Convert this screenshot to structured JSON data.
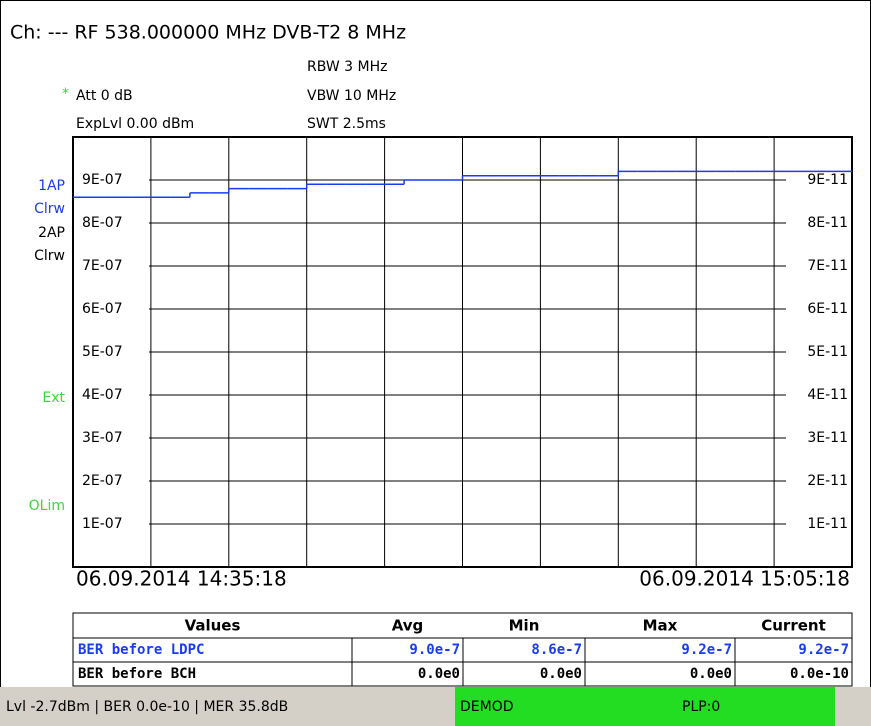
{
  "header": {
    "channel": "Ch: ---  RF 538.000000 MHz  DVB-T2  8 MHz",
    "rbw": "RBW 3 MHz",
    "vbw": "VBW 10 MHz",
    "swt": "SWT 2.5ms",
    "att_marker": "*",
    "att": "Att  0 dB",
    "explvl": "ExpLvl 0.00 dBm"
  },
  "side_labels": {
    "trace1": "1AP",
    "trace1_mode": "Clrw",
    "trace2": "2AP",
    "trace2_mode": "Clrw",
    "ext": "Ext",
    "olim": "OLim"
  },
  "chart_data": {
    "type": "line",
    "ylim": [
      0,
      1e-06
    ],
    "yticks": [
      {
        "value": 1e-07,
        "label": "1E-07"
      },
      {
        "value": 2e-07,
        "label": "2E-07"
      },
      {
        "value": 3e-07,
        "label": "3E-07"
      },
      {
        "value": 4e-07,
        "label": "4E-07"
      },
      {
        "value": 5e-07,
        "label": "5E-07"
      },
      {
        "value": 6e-07,
        "label": "6E-07"
      },
      {
        "value": 7e-07,
        "label": "7E-07"
      },
      {
        "value": 8e-07,
        "label": "8E-07"
      },
      {
        "value": 9e-07,
        "label": "9E-07"
      }
    ],
    "y2lim": [
      0,
      1e-10
    ],
    "y2ticks": [
      {
        "value": 1e-11,
        "label": "1E-11"
      },
      {
        "value": 2e-11,
        "label": "2E-11"
      },
      {
        "value": 3e-11,
        "label": "3E-11"
      },
      {
        "value": 4e-11,
        "label": "4E-11"
      },
      {
        "value": 5e-11,
        "label": "5E-11"
      },
      {
        "value": 6e-11,
        "label": "6E-11"
      },
      {
        "value": 7e-11,
        "label": "7E-11"
      },
      {
        "value": 8e-11,
        "label": "8E-11"
      },
      {
        "value": 9e-11,
        "label": "9E-11"
      }
    ],
    "x_range_labels": [
      "06.09.2014 14:35:18",
      "06.09.2014 15:05:18"
    ],
    "series": [
      {
        "name": "BER before LDPC",
        "color": "#1a3cf0",
        "values": [
          8.6e-07,
          8.6e-07,
          8.6e-07,
          8.6e-07,
          8.6e-07,
          8.6e-07,
          8.7e-07,
          8.7e-07,
          8.8e-07,
          8.8e-07,
          8.8e-07,
          8.8e-07,
          8.9e-07,
          8.9e-07,
          8.9e-07,
          8.9e-07,
          8.9e-07,
          9e-07,
          9e-07,
          9e-07,
          9.1e-07,
          9.1e-07,
          9.1e-07,
          9.1e-07,
          9.1e-07,
          9.1e-07,
          9.1e-07,
          9.1e-07,
          9.2e-07,
          9.2e-07,
          9.2e-07,
          9.2e-07,
          9.2e-07,
          9.2e-07,
          9.2e-07,
          9.2e-07,
          9.2e-07,
          9.2e-07,
          9.2e-07,
          9.2e-07
        ]
      }
    ]
  },
  "table": {
    "columns": [
      "Values",
      "Avg",
      "Min",
      "Max",
      "Current"
    ],
    "rows": [
      [
        "BER before LDPC",
        "9.0e-7",
        "8.6e-7",
        "9.2e-7",
        "9.2e-7"
      ],
      [
        "BER before BCH",
        "0.0e0",
        "0.0e0",
        "0.0e0",
        "0.0e-10"
      ]
    ]
  },
  "status": {
    "summary": "Lvl -2.7dBm | BER 0.0e-10 | MER 35.8dB",
    "demod": "DEMOD",
    "plp": "PLP:0"
  }
}
